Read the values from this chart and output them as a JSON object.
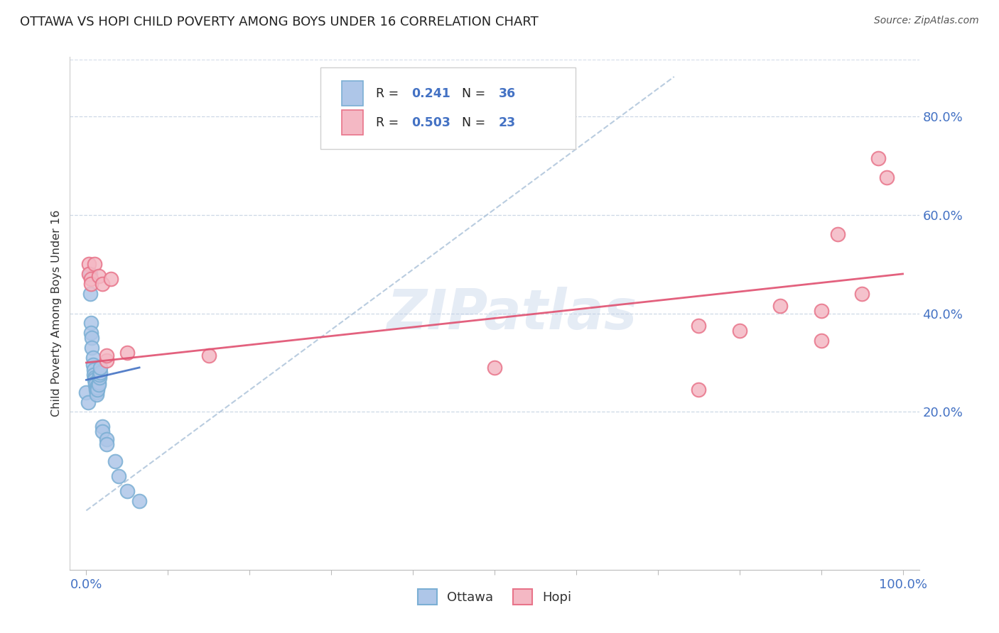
{
  "title": "OTTAWA VS HOPI CHILD POVERTY AMONG BOYS UNDER 16 CORRELATION CHART",
  "source": "Source: ZipAtlas.com",
  "ylabel": "Child Poverty Among Boys Under 16",
  "xlim": [
    -0.02,
    1.02
  ],
  "ylim": [
    -0.12,
    0.92
  ],
  "ytick_positions": [
    0.2,
    0.4,
    0.6,
    0.8
  ],
  "ytick_labels": [
    "20.0%",
    "40.0%",
    "60.0%",
    "80.0%"
  ],
  "xtick_positions": [
    0.0,
    0.1,
    0.2,
    0.3,
    0.4,
    0.5,
    0.6,
    0.7,
    0.8,
    0.9,
    1.0
  ],
  "xtick_labels": [
    "0.0%",
    "",
    "",
    "",
    "",
    "",
    "",
    "",
    "",
    "",
    "100.0%"
  ],
  "ottawa_color": "#7bafd4",
  "ottawa_face": "#aec6e8",
  "hopi_edge_color": "#e8748a",
  "hopi_face": "#f4b8c4",
  "ottawa_R": 0.241,
  "ottawa_N": 36,
  "hopi_R": 0.503,
  "hopi_N": 23,
  "trend_ottawa_color": "#4472c4",
  "trend_hopi_color": "#e05070",
  "trend_dashed_color": "#a8c0d8",
  "watermark": "ZIPatlas",
  "tick_color": "#4472c4",
  "ottawa_points": [
    [
      0.0,
      0.24
    ],
    [
      0.002,
      0.22
    ],
    [
      0.005,
      0.48
    ],
    [
      0.005,
      0.44
    ],
    [
      0.006,
      0.38
    ],
    [
      0.006,
      0.36
    ],
    [
      0.007,
      0.35
    ],
    [
      0.007,
      0.33
    ],
    [
      0.008,
      0.31
    ],
    [
      0.008,
      0.295
    ],
    [
      0.009,
      0.285
    ],
    [
      0.009,
      0.275
    ],
    [
      0.01,
      0.27
    ],
    [
      0.01,
      0.265
    ],
    [
      0.011,
      0.26
    ],
    [
      0.011,
      0.255
    ],
    [
      0.012,
      0.25
    ],
    [
      0.012,
      0.245
    ],
    [
      0.013,
      0.24
    ],
    [
      0.013,
      0.235
    ],
    [
      0.014,
      0.25
    ],
    [
      0.014,
      0.245
    ],
    [
      0.015,
      0.26
    ],
    [
      0.015,
      0.255
    ],
    [
      0.016,
      0.27
    ],
    [
      0.016,
      0.275
    ],
    [
      0.017,
      0.28
    ],
    [
      0.017,
      0.29
    ],
    [
      0.02,
      0.17
    ],
    [
      0.02,
      0.16
    ],
    [
      0.025,
      0.145
    ],
    [
      0.025,
      0.135
    ],
    [
      0.035,
      0.1
    ],
    [
      0.04,
      0.07
    ],
    [
      0.05,
      0.04
    ],
    [
      0.065,
      0.02
    ]
  ],
  "hopi_points": [
    [
      0.003,
      0.5
    ],
    [
      0.003,
      0.48
    ],
    [
      0.006,
      0.47
    ],
    [
      0.006,
      0.46
    ],
    [
      0.01,
      0.5
    ],
    [
      0.015,
      0.475
    ],
    [
      0.02,
      0.46
    ],
    [
      0.025,
      0.305
    ],
    [
      0.025,
      0.315
    ],
    [
      0.03,
      0.47
    ],
    [
      0.05,
      0.32
    ],
    [
      0.15,
      0.315
    ],
    [
      0.5,
      0.29
    ],
    [
      0.75,
      0.375
    ],
    [
      0.75,
      0.245
    ],
    [
      0.8,
      0.365
    ],
    [
      0.85,
      0.415
    ],
    [
      0.9,
      0.405
    ],
    [
      0.9,
      0.345
    ],
    [
      0.92,
      0.56
    ],
    [
      0.95,
      0.44
    ],
    [
      0.97,
      0.715
    ],
    [
      0.98,
      0.675
    ]
  ],
  "ottawa_trend_x": [
    0.0,
    0.065
  ],
  "ottawa_trend_y": [
    0.265,
    0.29
  ],
  "hopi_trend_x": [
    0.0,
    1.0
  ],
  "hopi_trend_y": [
    0.3,
    0.48
  ],
  "dashed_trend_x": [
    0.0,
    0.72
  ],
  "dashed_trend_y": [
    0.0,
    0.88
  ]
}
